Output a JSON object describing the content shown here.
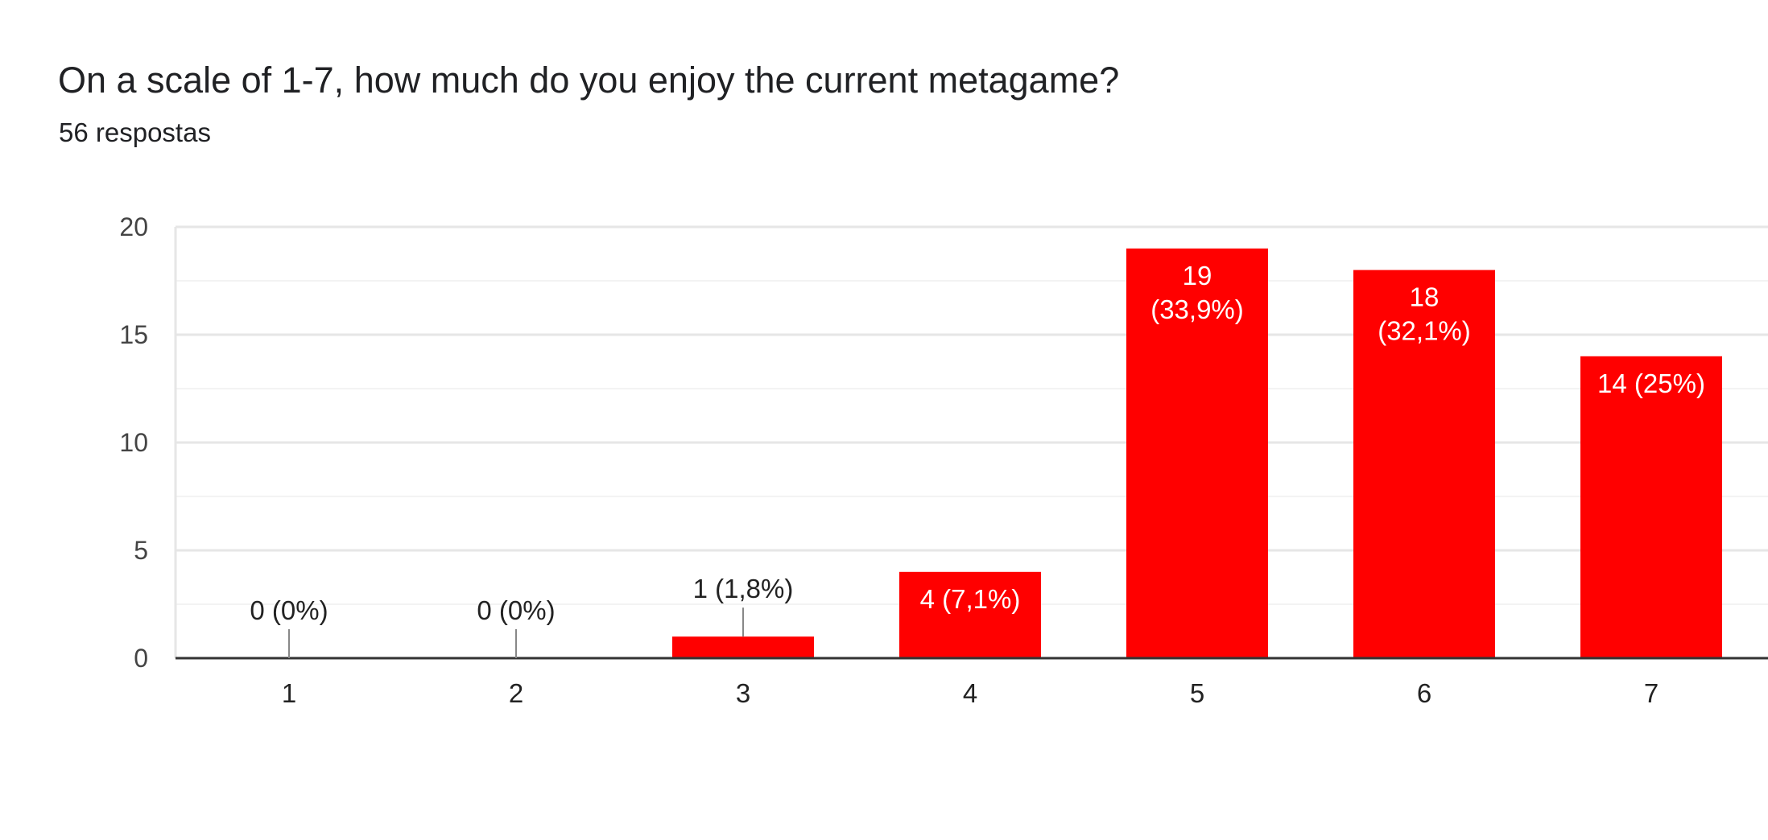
{
  "header": {
    "title": "On a scale of 1-7, how much do you enjoy the current metagame?",
    "response_count": "56 respostas"
  },
  "colors": {
    "bar": "#ff0000",
    "axis": "#333333",
    "grid_major": "#e6e6e6",
    "grid_minor": "#f3f3f3",
    "label_inside": "#ffffff",
    "label_outside": "#222222"
  },
  "chart_data": {
    "type": "bar",
    "categories": [
      "1",
      "2",
      "3",
      "4",
      "5",
      "6",
      "7"
    ],
    "values": [
      0,
      0,
      1,
      4,
      19,
      18,
      14
    ],
    "data_labels": [
      [
        "0 (0%)"
      ],
      [
        "0 (0%)"
      ],
      [
        "1 (1,8%)"
      ],
      [
        "4 (7,1%)"
      ],
      [
        "19",
        "(33,9%)"
      ],
      [
        "18",
        "(32,1%)"
      ],
      [
        "14 (25%)"
      ]
    ],
    "ylim": [
      0,
      20
    ],
    "yticks": [
      0,
      5,
      10,
      15,
      20
    ],
    "grid": true,
    "legend": false,
    "xlabel": "",
    "ylabel": ""
  }
}
